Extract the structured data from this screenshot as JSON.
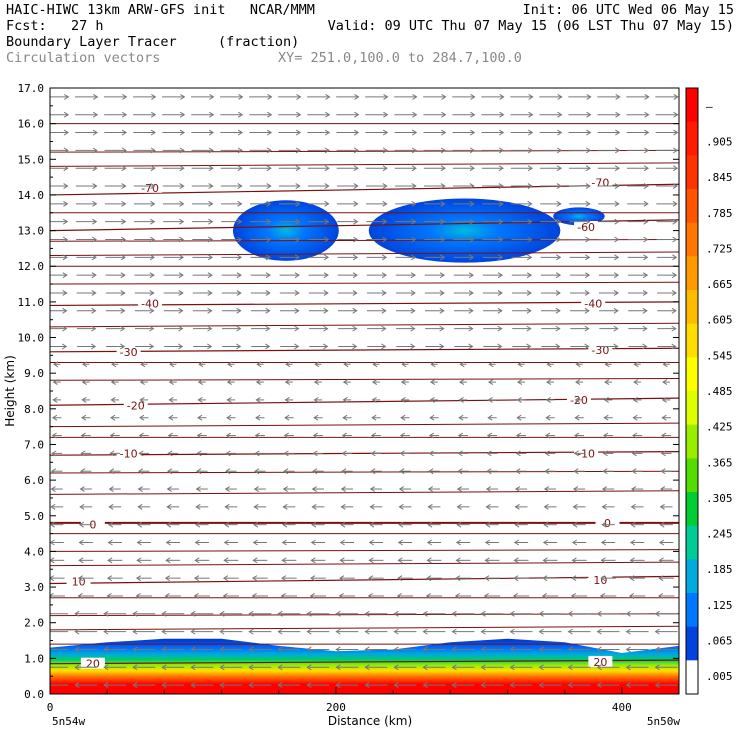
{
  "header": {
    "line1_left": "HAIC-HIWC 13km ARW-GFS init   NCAR/MMM",
    "line1_right": "Init: 06 UTC Wed 06 May 15",
    "line2_left": "Fcst:   27 h",
    "line2_right": "Valid: 09 UTC Thu 07 May 15 (06 LST Thu 07 May 15)",
    "line3_left": "Boundary Layer Tracer",
    "line3_mid": "(fraction)",
    "line4_left": "Circulation vectors",
    "line4_right": "XY= 251.0,100.0 to 284.7,100.0"
  },
  "colors": {
    "contour_line": "#7a1010",
    "vector": "#777777",
    "background": "#ffffff"
  },
  "chart_data": {
    "type": "heatmap",
    "ylabel": "Height (km)",
    "xlabel": "Distance (km)",
    "ylim": [
      0,
      17
    ],
    "xlim": [
      0,
      440
    ],
    "y_ticks": [
      "0.0",
      "1.0",
      "2.0",
      "3.0",
      "4.0",
      "5.0",
      "6.0",
      "7.0",
      "8.0",
      "9.0",
      "10.0",
      "11.0",
      "12.0",
      "13.0",
      "14.0",
      "15.0",
      "16.0",
      "17.0"
    ],
    "x_ticks": [
      "0",
      "200",
      "400"
    ],
    "x_endpoint_left": "5n54w",
    "x_endpoint_right": "5n50w",
    "colorbar": {
      "labels": [
        "–",
        ".905",
        ".845",
        ".785",
        ".725",
        ".665",
        ".605",
        ".545",
        ".485",
        ".425",
        ".365",
        ".305",
        ".245",
        ".185",
        ".125",
        ".065",
        ".005"
      ],
      "colors": [
        "#ff0000",
        "#ff1a00",
        "#ff3300",
        "#ff5500",
        "#ff7700",
        "#ff9900",
        "#ffbb00",
        "#ffdd00",
        "#ffff00",
        "#ddff00",
        "#99ee00",
        "#55dd00",
        "#00cc33",
        "#00cc99",
        "#00aadd",
        "#0077ff",
        "#0044dd",
        "#ffffff"
      ]
    },
    "temperature_contours": [
      {
        "value": 70,
        "label": "-70",
        "y_left": 14.0,
        "y_right": 14.3,
        "label_pos": [
          [
            70,
            14.2
          ],
          [
            385,
            14.35
          ]
        ]
      },
      {
        "value": 60,
        "label": "-60",
        "y_left": 13.0,
        "y_right": 13.3,
        "label_pos": [
          [
            375,
            13.1
          ]
        ]
      },
      {
        "value": 40,
        "label": "-40",
        "y_left": 10.9,
        "y_right": 11.0,
        "label_pos": [
          [
            70,
            10.95
          ],
          [
            380,
            10.95
          ]
        ]
      },
      {
        "value": 30,
        "label": "-30",
        "y_left": 9.6,
        "y_right": 9.7,
        "label_pos": [
          [
            55,
            9.6
          ],
          [
            385,
            9.65
          ]
        ]
      },
      {
        "value": 20,
        "label": "-20",
        "y_left": 8.1,
        "y_right": 8.3,
        "label_pos": [
          [
            60,
            8.1
          ],
          [
            370,
            8.25
          ]
        ]
      },
      {
        "value": 10,
        "label": "-10",
        "y_left": 6.7,
        "y_right": 6.8,
        "label_pos": [
          [
            55,
            6.75
          ],
          [
            375,
            6.75
          ]
        ]
      },
      {
        "value": 0,
        "label": "0",
        "y_left": 4.8,
        "y_right": 4.8,
        "label_pos": [
          [
            30,
            4.75
          ],
          [
            390,
            4.8
          ]
        ]
      },
      {
        "value": -10,
        "label": "10",
        "y_left": 3.1,
        "y_right": 3.3,
        "label_pos": [
          [
            20,
            3.15
          ],
          [
            385,
            3.2
          ]
        ]
      },
      {
        "value": -20,
        "label": "20",
        "y_left": 0.85,
        "y_right": 0.95,
        "label_pos": [
          [
            30,
            0.85
          ],
          [
            385,
            0.9
          ]
        ]
      }
    ],
    "unlabeled_contour_heights": [
      16.0,
      15.2,
      14.8,
      13.5,
      12.7,
      12.3,
      12.0,
      11.5,
      10.3,
      9.3,
      8.8,
      7.5,
      7.2,
      6.2,
      5.6,
      4.5,
      4.0,
      3.6,
      2.7,
      2.2,
      1.8,
      1.4
    ],
    "upper_plumes": [
      {
        "x_center": 165,
        "y_center": 13.0,
        "x_halfwidth": 37,
        "y_halfwidth": 0.85,
        "max_fraction": 0.05
      },
      {
        "x_center": 290,
        "y_center": 13.0,
        "x_halfwidth": 67,
        "y_halfwidth": 0.9,
        "max_fraction": 0.1
      },
      {
        "x_center": 370,
        "y_center": 13.4,
        "x_halfwidth": 18,
        "y_halfwidth": 0.25,
        "max_fraction": 0.02
      }
    ],
    "boundary_layer_top_km": [
      [
        0,
        1.3
      ],
      [
        40,
        1.45
      ],
      [
        80,
        1.55
      ],
      [
        120,
        1.55
      ],
      [
        160,
        1.35
      ],
      [
        200,
        1.2
      ],
      [
        240,
        1.25
      ],
      [
        280,
        1.45
      ],
      [
        320,
        1.55
      ],
      [
        360,
        1.45
      ],
      [
        400,
        1.15
      ],
      [
        440,
        1.35
      ]
    ]
  }
}
